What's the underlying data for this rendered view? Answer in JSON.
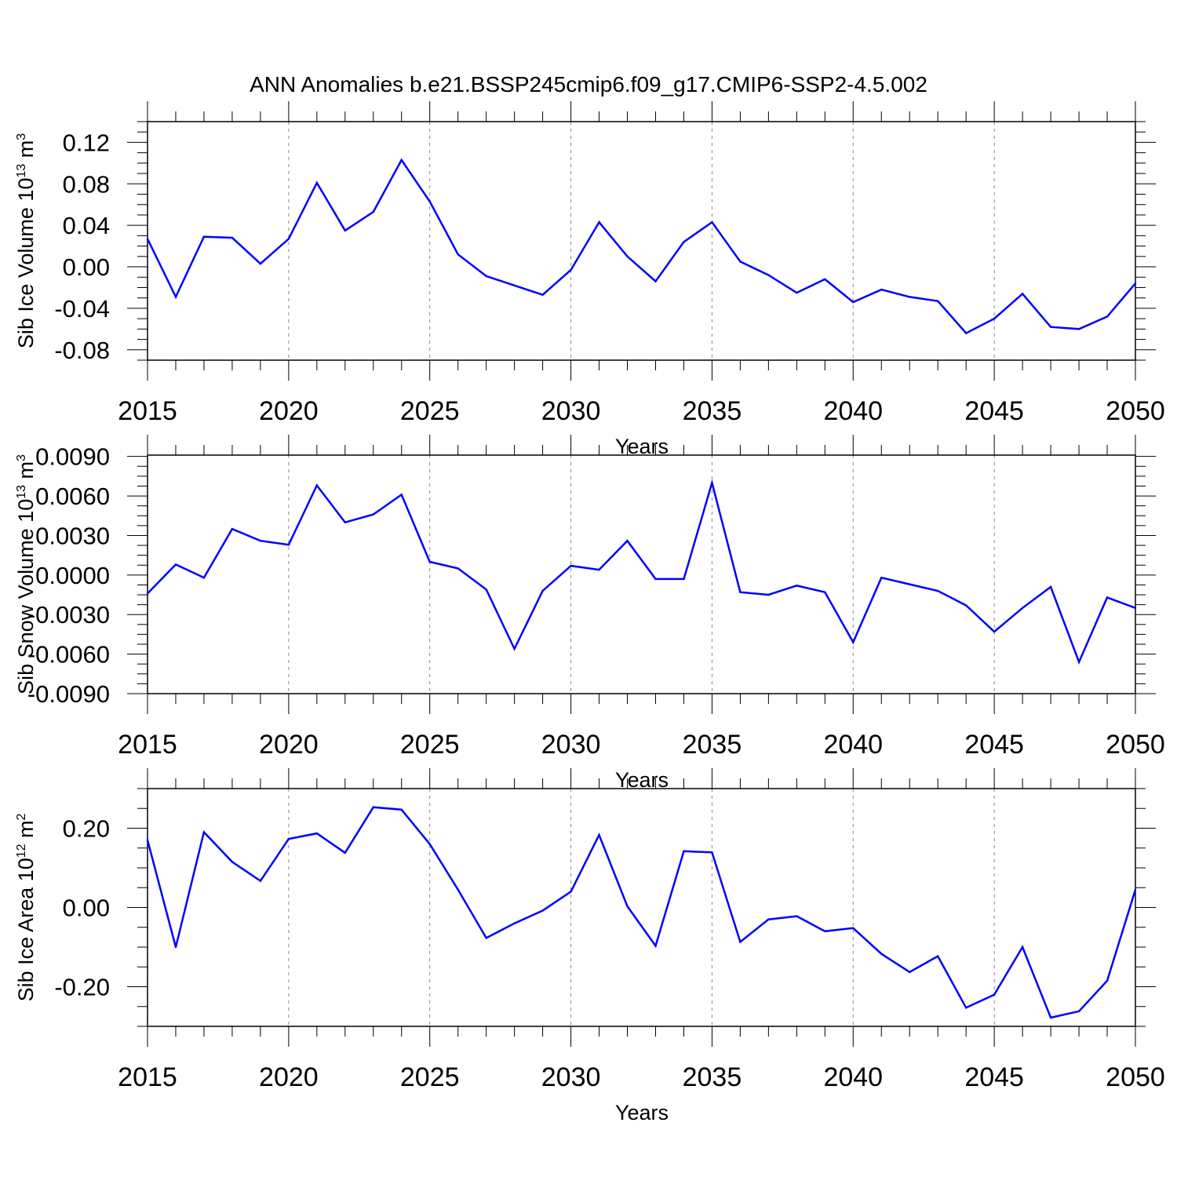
{
  "title": "ANN Anomalies b.e21.BSSP245cmip6.f09_g17.CMIP6-SSP2-4.5.002",
  "line_color": "#0000ff",
  "chart_data": [
    {
      "type": "line",
      "ylabel": {
        "text": "Sib Ice Volume 10",
        "exp": "13",
        "unit": " m",
        "unit_exp": "3"
      },
      "xlabel": "Years",
      "xlim": [
        2015,
        2050
      ],
      "ylim": [
        -0.09,
        0.14
      ],
      "yticks": [
        0.12,
        0.08,
        0.04,
        0.0,
        -0.04,
        -0.08
      ],
      "ytick_labels": [
        "0.12",
        "0.08",
        "0.04",
        "0.00",
        "-0.04",
        "-0.08"
      ],
      "xticks": [
        2015,
        2020,
        2025,
        2030,
        2035,
        2040,
        2045,
        2050
      ],
      "xtick_labels": [
        "2015",
        "2020",
        "2025",
        "2030",
        "2035",
        "2040",
        "2045",
        "2050"
      ],
      "x": [
        2015,
        2016,
        2017,
        2018,
        2019,
        2020,
        2021,
        2022,
        2023,
        2024,
        2025,
        2026,
        2027,
        2028,
        2029,
        2030,
        2031,
        2032,
        2033,
        2034,
        2035,
        2036,
        2037,
        2038,
        2039,
        2040,
        2041,
        2042,
        2043,
        2044,
        2045,
        2046,
        2047,
        2048,
        2049,
        2050
      ],
      "values": [
        0.027,
        -0.029,
        0.029,
        0.028,
        0.003,
        0.027,
        0.081,
        0.035,
        0.053,
        0.103,
        0.063,
        0.012,
        -0.009,
        -0.018,
        -0.027,
        -0.003,
        0.043,
        0.01,
        -0.014,
        0.024,
        0.043,
        0.005,
        -0.008,
        -0.025,
        -0.012,
        -0.034,
        -0.022,
        -0.029,
        -0.033,
        -0.064,
        -0.05,
        -0.026,
        -0.058,
        -0.06,
        -0.048,
        -0.016
      ]
    },
    {
      "type": "line",
      "ylabel": {
        "text": "Sib Snow Volume 10",
        "exp": "13",
        "unit": " m",
        "unit_exp": "3"
      },
      "xlabel": "Years",
      "xlim": [
        2015,
        2050
      ],
      "ylim": [
        -0.009,
        0.0091
      ],
      "yticks": [
        0.009,
        0.006,
        0.003,
        0.0,
        -0.003,
        -0.006,
        -0.009
      ],
      "ytick_labels": [
        "0.0090",
        "0.0060",
        "0.0030",
        "0.0000",
        "-0.0030",
        "-0.0060",
        "-0.0090"
      ],
      "xticks": [
        2015,
        2020,
        2025,
        2030,
        2035,
        2040,
        2045,
        2050
      ],
      "xtick_labels": [
        "2015",
        "2020",
        "2025",
        "2030",
        "2035",
        "2040",
        "2045",
        "2050"
      ],
      "x": [
        2015,
        2016,
        2017,
        2018,
        2019,
        2020,
        2021,
        2022,
        2023,
        2024,
        2025,
        2026,
        2027,
        2028,
        2029,
        2030,
        2031,
        2032,
        2033,
        2034,
        2035,
        2036,
        2037,
        2038,
        2039,
        2040,
        2041,
        2042,
        2043,
        2044,
        2045,
        2046,
        2047,
        2048,
        2049,
        2050
      ],
      "values": [
        -0.0014,
        0.0008,
        -0.0002,
        0.0035,
        0.0026,
        0.0023,
        0.0068,
        0.004,
        0.0046,
        0.0061,
        0.001,
        0.0005,
        -0.0011,
        -0.0056,
        -0.0012,
        0.0007,
        0.0004,
        0.0026,
        -0.0003,
        -0.0003,
        0.007,
        -0.0013,
        -0.0015,
        -0.0008,
        -0.0013,
        -0.0051,
        -0.0002,
        -0.0007,
        -0.0012,
        -0.0023,
        -0.0043,
        -0.0025,
        -0.0009,
        -0.0066,
        -0.0017,
        -0.0025
      ]
    },
    {
      "type": "line",
      "ylabel": {
        "text": "Sib Ice Area 10",
        "exp": "12",
        "unit": " m",
        "unit_exp": "2"
      },
      "xlabel": "Years",
      "xlim": [
        2015,
        2050
      ],
      "ylim": [
        -0.3,
        0.3
      ],
      "yticks": [
        0.2,
        0.0,
        -0.2
      ],
      "ytick_labels": [
        "0.20",
        "0.00",
        "-0.20"
      ],
      "xticks": [
        2015,
        2020,
        2025,
        2030,
        2035,
        2040,
        2045,
        2050
      ],
      "xtick_labels": [
        "2015",
        "2020",
        "2025",
        "2030",
        "2035",
        "2040",
        "2045",
        "2050"
      ],
      "x": [
        2015,
        2016,
        2017,
        2018,
        2019,
        2020,
        2021,
        2022,
        2023,
        2024,
        2025,
        2026,
        2027,
        2028,
        2029,
        2030,
        2031,
        2032,
        2033,
        2034,
        2035,
        2036,
        2037,
        2038,
        2039,
        2040,
        2041,
        2042,
        2043,
        2044,
        2045,
        2046,
        2047,
        2048,
        2049,
        2050
      ],
      "values": [
        0.17,
        -0.1,
        0.19,
        0.115,
        0.067,
        0.173,
        0.187,
        0.138,
        0.253,
        0.247,
        0.16,
        0.045,
        -0.077,
        -0.04,
        -0.008,
        0.04,
        0.183,
        0.003,
        -0.097,
        0.142,
        0.139,
        -0.087,
        -0.03,
        -0.022,
        -0.06,
        -0.052,
        -0.117,
        -0.163,
        -0.123,
        -0.253,
        -0.22,
        -0.1,
        -0.278,
        -0.262,
        -0.185,
        0.045
      ]
    }
  ]
}
